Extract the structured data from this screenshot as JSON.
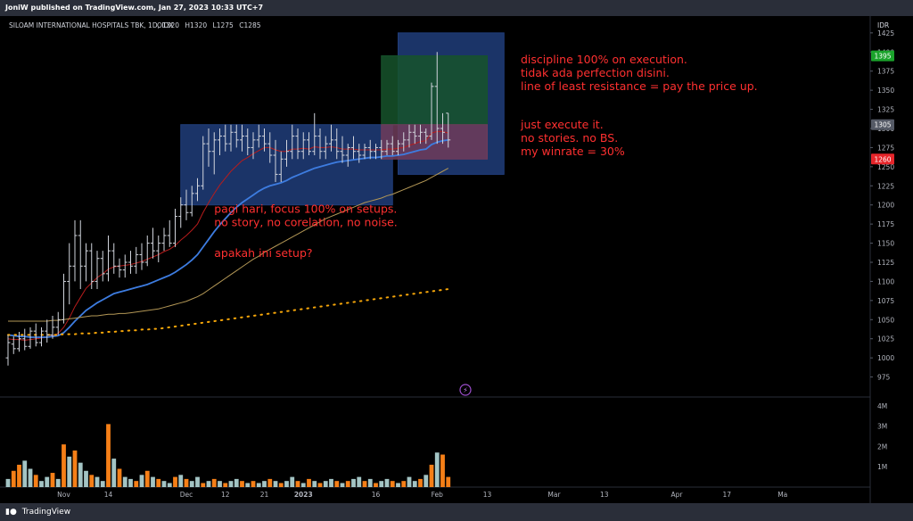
{
  "header": {
    "published_text": "JoniW published on TradingView.com, Jan 27, 2023 10:33 UTC+7"
  },
  "footer": {
    "brand": "TradingView"
  },
  "colors": {
    "background": "#000000",
    "bull_bar": "#d1d4dc",
    "volume_down": "#f57f17",
    "volume_up": "#a3c4c4",
    "ema_fast": "#b71c1c",
    "ema_mid": "#3d7ce0",
    "ma_slow": "#b39756",
    "ma_dotted": "#f6a609",
    "annotation_text": "#ff3030",
    "box_blue": "#203d7a",
    "box_green": "#16532c",
    "box_pink": "#6f3c5b"
  },
  "chart_data": {
    "type": "ohlc",
    "symbol_line": {
      "name": "SILOAM INTERNATIONAL HOSPITALS TBK, 1D, IDX",
      "o_label": "O",
      "o": "1320",
      "h_label": "H",
      "h": "1320",
      "l_label": "L",
      "l": "1275",
      "c_label": "C",
      "c": "1285"
    },
    "currency": "IDR",
    "ylim": [
      950,
      1440
    ],
    "y_ticks": [
      975,
      1000,
      1025,
      1050,
      1075,
      1100,
      1125,
      1150,
      1175,
      1200,
      1225,
      1250,
      1275,
      1300,
      1325,
      1350,
      1375,
      1400,
      1425
    ],
    "y_tick_labels": [
      "975",
      "1000",
      "1025",
      "1050",
      "1075",
      "1100",
      "1125",
      "1150",
      "1175",
      "1200",
      "1225",
      "1250",
      "1275",
      "1300",
      "1325",
      "1350",
      "1375",
      "1400",
      "1425"
    ],
    "price_tags": [
      {
        "value": 1395,
        "label": "1395",
        "color": "#1aa32b"
      },
      {
        "value": 1305,
        "label": "1305",
        "color": "#555a66"
      },
      {
        "value": 1260,
        "label": "1260",
        "color": "#e5252a"
      }
    ],
    "bars": [
      {
        "o": 1000,
        "h": 1030,
        "l": 990,
        "c": 1020
      },
      {
        "o": 1018,
        "h": 1028,
        "l": 1005,
        "c": 1012
      },
      {
        "o": 1012,
        "h": 1034,
        "l": 1008,
        "c": 1025
      },
      {
        "o": 1025,
        "h": 1038,
        "l": 1010,
        "c": 1015
      },
      {
        "o": 1015,
        "h": 1040,
        "l": 1012,
        "c": 1035
      },
      {
        "o": 1035,
        "h": 1045,
        "l": 1015,
        "c": 1020
      },
      {
        "o": 1020,
        "h": 1040,
        "l": 1015,
        "c": 1035
      },
      {
        "o": 1035,
        "h": 1050,
        "l": 1020,
        "c": 1030
      },
      {
        "o": 1030,
        "h": 1055,
        "l": 1025,
        "c": 1040
      },
      {
        "o": 1040,
        "h": 1060,
        "l": 1030,
        "c": 1050
      },
      {
        "o": 1050,
        "h": 1110,
        "l": 1045,
        "c": 1100
      },
      {
        "o": 1100,
        "h": 1150,
        "l": 1070,
        "c": 1120
      },
      {
        "o": 1120,
        "h": 1180,
        "l": 1100,
        "c": 1160
      },
      {
        "o": 1160,
        "h": 1180,
        "l": 1090,
        "c": 1120
      },
      {
        "o": 1120,
        "h": 1150,
        "l": 1100,
        "c": 1140
      },
      {
        "o": 1140,
        "h": 1150,
        "l": 1090,
        "c": 1100
      },
      {
        "o": 1100,
        "h": 1140,
        "l": 1090,
        "c": 1130
      },
      {
        "o": 1130,
        "h": 1140,
        "l": 1100,
        "c": 1110
      },
      {
        "o": 1110,
        "h": 1160,
        "l": 1100,
        "c": 1140
      },
      {
        "o": 1140,
        "h": 1150,
        "l": 1110,
        "c": 1120
      },
      {
        "o": 1120,
        "h": 1130,
        "l": 1105,
        "c": 1115
      },
      {
        "o": 1115,
        "h": 1135,
        "l": 1105,
        "c": 1125
      },
      {
        "o": 1125,
        "h": 1140,
        "l": 1110,
        "c": 1120
      },
      {
        "o": 1120,
        "h": 1145,
        "l": 1110,
        "c": 1135
      },
      {
        "o": 1135,
        "h": 1150,
        "l": 1115,
        "c": 1125
      },
      {
        "o": 1125,
        "h": 1160,
        "l": 1120,
        "c": 1150
      },
      {
        "o": 1150,
        "h": 1170,
        "l": 1130,
        "c": 1140
      },
      {
        "o": 1140,
        "h": 1160,
        "l": 1125,
        "c": 1150
      },
      {
        "o": 1150,
        "h": 1170,
        "l": 1140,
        "c": 1160
      },
      {
        "o": 1160,
        "h": 1180,
        "l": 1145,
        "c": 1150
      },
      {
        "o": 1150,
        "h": 1195,
        "l": 1145,
        "c": 1185
      },
      {
        "o": 1185,
        "h": 1210,
        "l": 1170,
        "c": 1200
      },
      {
        "o": 1200,
        "h": 1220,
        "l": 1180,
        "c": 1190
      },
      {
        "o": 1190,
        "h": 1225,
        "l": 1185,
        "c": 1215
      },
      {
        "o": 1215,
        "h": 1235,
        "l": 1205,
        "c": 1225
      },
      {
        "o": 1225,
        "h": 1290,
        "l": 1220,
        "c": 1280
      },
      {
        "o": 1280,
        "h": 1300,
        "l": 1250,
        "c": 1270
      },
      {
        "o": 1270,
        "h": 1295,
        "l": 1240,
        "c": 1285
      },
      {
        "o": 1285,
        "h": 1300,
        "l": 1265,
        "c": 1290
      },
      {
        "o": 1290,
        "h": 1305,
        "l": 1270,
        "c": 1280
      },
      {
        "o": 1280,
        "h": 1305,
        "l": 1270,
        "c": 1295
      },
      {
        "o": 1295,
        "h": 1305,
        "l": 1275,
        "c": 1285
      },
      {
        "o": 1285,
        "h": 1305,
        "l": 1270,
        "c": 1290
      },
      {
        "o": 1290,
        "h": 1300,
        "l": 1265,
        "c": 1275
      },
      {
        "o": 1275,
        "h": 1295,
        "l": 1260,
        "c": 1285
      },
      {
        "o": 1285,
        "h": 1305,
        "l": 1275,
        "c": 1290
      },
      {
        "o": 1290,
        "h": 1300,
        "l": 1270,
        "c": 1280
      },
      {
        "o": 1280,
        "h": 1295,
        "l": 1255,
        "c": 1265
      },
      {
        "o": 1265,
        "h": 1285,
        "l": 1230,
        "c": 1240
      },
      {
        "o": 1240,
        "h": 1270,
        "l": 1230,
        "c": 1260
      },
      {
        "o": 1260,
        "h": 1285,
        "l": 1250,
        "c": 1270
      },
      {
        "o": 1270,
        "h": 1305,
        "l": 1260,
        "c": 1290
      },
      {
        "o": 1290,
        "h": 1300,
        "l": 1260,
        "c": 1270
      },
      {
        "o": 1270,
        "h": 1295,
        "l": 1260,
        "c": 1285
      },
      {
        "o": 1285,
        "h": 1295,
        "l": 1265,
        "c": 1270
      },
      {
        "o": 1270,
        "h": 1320,
        "l": 1265,
        "c": 1290
      },
      {
        "o": 1290,
        "h": 1300,
        "l": 1260,
        "c": 1270
      },
      {
        "o": 1270,
        "h": 1290,
        "l": 1260,
        "c": 1280
      },
      {
        "o": 1280,
        "h": 1305,
        "l": 1270,
        "c": 1285
      },
      {
        "o": 1285,
        "h": 1300,
        "l": 1260,
        "c": 1270
      },
      {
        "o": 1270,
        "h": 1290,
        "l": 1255,
        "c": 1265
      },
      {
        "o": 1265,
        "h": 1280,
        "l": 1250,
        "c": 1275
      },
      {
        "o": 1275,
        "h": 1290,
        "l": 1260,
        "c": 1270
      },
      {
        "o": 1270,
        "h": 1280,
        "l": 1255,
        "c": 1265
      },
      {
        "o": 1265,
        "h": 1280,
        "l": 1260,
        "c": 1275
      },
      {
        "o": 1275,
        "h": 1285,
        "l": 1260,
        "c": 1270
      },
      {
        "o": 1270,
        "h": 1280,
        "l": 1260,
        "c": 1275
      },
      {
        "o": 1275,
        "h": 1285,
        "l": 1260,
        "c": 1270
      },
      {
        "o": 1270,
        "h": 1285,
        "l": 1265,
        "c": 1280
      },
      {
        "o": 1280,
        "h": 1290,
        "l": 1265,
        "c": 1270
      },
      {
        "o": 1270,
        "h": 1285,
        "l": 1265,
        "c": 1280
      },
      {
        "o": 1280,
        "h": 1295,
        "l": 1270,
        "c": 1285
      },
      {
        "o": 1285,
        "h": 1305,
        "l": 1275,
        "c": 1295
      },
      {
        "o": 1295,
        "h": 1305,
        "l": 1280,
        "c": 1290
      },
      {
        "o": 1290,
        "h": 1305,
        "l": 1280,
        "c": 1295
      },
      {
        "o": 1295,
        "h": 1300,
        "l": 1280,
        "c": 1290
      },
      {
        "o": 1290,
        "h": 1360,
        "l": 1285,
        "c": 1355
      },
      {
        "o": 1355,
        "h": 1400,
        "l": 1280,
        "c": 1300
      },
      {
        "o": 1300,
        "h": 1320,
        "l": 1280,
        "c": 1295
      },
      {
        "o": 1320,
        "h": 1320,
        "l": 1275,
        "c": 1285
      }
    ],
    "overlays": [
      {
        "name": "",
        "style": "solid",
        "color_key": "ema_fast",
        "values": [
          1025,
          1024,
          1024,
          1023,
          1024,
          1025,
          1026,
          1027,
          1029,
          1032,
          1040,
          1052,
          1067,
          1079,
          1091,
          1098,
          1105,
          1110,
          1116,
          1119,
          1120,
          1121,
          1122,
          1124,
          1126,
          1129,
          1132,
          1135,
          1139,
          1142,
          1147,
          1154,
          1160,
          1167,
          1175,
          1190,
          1203,
          1215,
          1226,
          1235,
          1244,
          1251,
          1258,
          1262,
          1267,
          1271,
          1275,
          1275,
          1272,
          1270,
          1270,
          1273,
          1273,
          1274,
          1273,
          1276,
          1275,
          1275,
          1276,
          1275,
          1273,
          1273,
          1273,
          1272,
          1272,
          1272,
          1272,
          1272,
          1273,
          1273,
          1274,
          1275,
          1278,
          1280,
          1283,
          1284,
          1294,
          1296,
          1296,
          1294
        ]
      },
      {
        "name": "",
        "style": "solid",
        "color_key": "ema_mid",
        "values": [
          1030,
          1029,
          1028,
          1028,
          1027,
          1027,
          1027,
          1027,
          1028,
          1029,
          1033,
          1040,
          1048,
          1055,
          1062,
          1067,
          1072,
          1076,
          1080,
          1084,
          1086,
          1088,
          1090,
          1092,
          1094,
          1096,
          1099,
          1102,
          1105,
          1108,
          1112,
          1117,
          1122,
          1128,
          1135,
          1145,
          1155,
          1165,
          1174,
          1182,
          1190,
          1197,
          1203,
          1208,
          1213,
          1218,
          1222,
          1225,
          1227,
          1229,
          1232,
          1236,
          1239,
          1242,
          1245,
          1248,
          1250,
          1252,
          1254,
          1256,
          1257,
          1258,
          1259,
          1260,
          1261,
          1262,
          1262,
          1263,
          1264,
          1264,
          1265,
          1266,
          1268,
          1270,
          1272,
          1273,
          1279,
          1282,
          1284,
          1285
        ]
      },
      {
        "name": "",
        "style": "solid",
        "color_key": "ma_slow",
        "values": [
          1048,
          1048,
          1048,
          1048,
          1048,
          1048,
          1048,
          1048,
          1049,
          1049,
          1050,
          1051,
          1052,
          1053,
          1054,
          1055,
          1055,
          1056,
          1057,
          1057,
          1058,
          1058,
          1059,
          1060,
          1061,
          1062,
          1063,
          1064,
          1066,
          1068,
          1070,
          1072,
          1074,
          1077,
          1080,
          1084,
          1089,
          1094,
          1099,
          1104,
          1109,
          1114,
          1119,
          1124,
          1129,
          1133,
          1138,
          1142,
          1146,
          1150,
          1154,
          1158,
          1162,
          1166,
          1170,
          1174,
          1178,
          1182,
          1185,
          1188,
          1191,
          1194,
          1197,
          1200,
          1203,
          1205,
          1207,
          1209,
          1212,
          1214,
          1217,
          1220,
          1223,
          1226,
          1229,
          1232,
          1236,
          1240,
          1244,
          1248
        ]
      },
      {
        "name": "",
        "style": "dotted",
        "color_key": "ma_dotted",
        "values": [
          1030,
          1030,
          1030,
          1030,
          1030,
          1030,
          1030,
          1030,
          1030,
          1030,
          1031,
          1031,
          1031,
          1032,
          1032,
          1032,
          1033,
          1033,
          1034,
          1034,
          1035,
          1035,
          1036,
          1036,
          1037,
          1037,
          1038,
          1038,
          1039,
          1040,
          1041,
          1042,
          1043,
          1044,
          1045,
          1046,
          1047,
          1048,
          1049,
          1050,
          1051,
          1052,
          1053,
          1054,
          1055,
          1056,
          1057,
          1058,
          1059,
          1060,
          1061,
          1062,
          1063,
          1064,
          1065,
          1066,
          1067,
          1068,
          1069,
          1070,
          1071,
          1072,
          1073,
          1074,
          1075,
          1076,
          1077,
          1078,
          1079,
          1080,
          1081,
          1082,
          1083,
          1084,
          1085,
          1086,
          1087,
          1088,
          1089,
          1090
        ]
      }
    ],
    "volume": {
      "ylim": [
        0,
        4.3
      ],
      "y_ticks": [
        1,
        2,
        3,
        4
      ],
      "y_tick_labels": [
        "1M",
        "2M",
        "3M",
        "4M"
      ],
      "values": [
        0.4,
        0.8,
        1.1,
        1.3,
        0.9,
        0.6,
        0.3,
        0.5,
        0.7,
        0.4,
        2.1,
        1.5,
        1.8,
        1.2,
        0.8,
        0.6,
        0.5,
        0.3,
        3.1,
        1.4,
        0.9,
        0.5,
        0.4,
        0.3,
        0.6,
        0.8,
        0.5,
        0.4,
        0.3,
        0.2,
        0.5,
        0.6,
        0.4,
        0.3,
        0.5,
        0.2,
        0.3,
        0.4,
        0.3,
        0.2,
        0.3,
        0.4,
        0.3,
        0.2,
        0.3,
        0.2,
        0.3,
        0.4,
        0.3,
        0.2,
        0.3,
        0.5,
        0.3,
        0.2,
        0.4,
        0.3,
        0.2,
        0.3,
        0.4,
        0.3,
        0.2,
        0.3,
        0.4,
        0.5,
        0.3,
        0.4,
        0.2,
        0.3,
        0.4,
        0.3,
        0.2,
        0.3,
        0.5,
        0.3,
        0.4,
        0.6,
        1.1,
        1.7,
        1.6,
        0.5
      ],
      "down": [
        false,
        true,
        true,
        false,
        false,
        true,
        false,
        false,
        true,
        false,
        true,
        false,
        true,
        false,
        false,
        true,
        false,
        false,
        true,
        false,
        true,
        false,
        false,
        true,
        false,
        true,
        false,
        true,
        false,
        false,
        true,
        false,
        true,
        false,
        false,
        true,
        false,
        true,
        false,
        true,
        false,
        false,
        true,
        false,
        true,
        false,
        false,
        true,
        false,
        true,
        false,
        false,
        true,
        false,
        true,
        false,
        true,
        false,
        false,
        true,
        false,
        true,
        false,
        false,
        true,
        false,
        true,
        false,
        false,
        true,
        false,
        true,
        false,
        false,
        true,
        false,
        true,
        false,
        true,
        true
      ]
    },
    "x_tick_labels": [
      {
        "label": "Nov",
        "bar": 10
      },
      {
        "label": "14",
        "bar": 18
      },
      {
        "label": "Dec",
        "bar": 32
      },
      {
        "label": "12",
        "bar": 39
      },
      {
        "label": "21",
        "bar": 46
      },
      {
        "label": "2023",
        "bar": 53
      },
      {
        "label": "16",
        "bar": 66
      },
      {
        "label": "Feb",
        "bar": 77
      },
      {
        "label": "13",
        "bar": 86
      },
      {
        "label": "Mar",
        "bar": 98
      },
      {
        "label": "13",
        "bar": 107
      },
      {
        "label": "Apr",
        "bar": 120
      },
      {
        "label": "17",
        "bar": 129
      },
      {
        "label": "Ma",
        "bar": 139
      }
    ],
    "boxes": [
      {
        "name": "consolidation-box",
        "bar_from": 31,
        "bar_to": 69,
        "y_from": 1200,
        "y_to": 1305,
        "color_key": "box_blue"
      },
      {
        "name": "setup-box",
        "bar_from": 70,
        "bar_to": 89,
        "y_from": 1240,
        "y_to": 1425,
        "color_key": "box_blue"
      },
      {
        "name": "target-box",
        "bar_from": 67,
        "bar_to": 86,
        "y_from": 1305,
        "y_to": 1395,
        "color_key": "box_green"
      },
      {
        "name": "stop-box",
        "bar_from": 67,
        "bar_to": 86,
        "y_from": 1260,
        "y_to": 1305,
        "color_key": "box_pink"
      }
    ],
    "annotations": [
      {
        "name": "annotation-execution",
        "bar": 92,
        "y": 1385,
        "lines": [
          "discipline 100% on execution.",
          "tidak ada perfection disini.",
          "line of least resistance = pay the price up."
        ]
      },
      {
        "name": "annotation-just-execute",
        "bar": 92,
        "y": 1300,
        "lines": [
          "just execute it.",
          "no stories. no BS.",
          "my winrate = 30%"
        ]
      },
      {
        "name": "annotation-pagi-hari",
        "bar": 37,
        "y": 1190,
        "lines": [
          "pagi hari, focus 100% on setups.",
          "no story, no corelation, no noise."
        ]
      },
      {
        "name": "annotation-apakah",
        "bar": 37,
        "y": 1132,
        "lines": [
          "apakah ini setup?"
        ]
      }
    ]
  }
}
